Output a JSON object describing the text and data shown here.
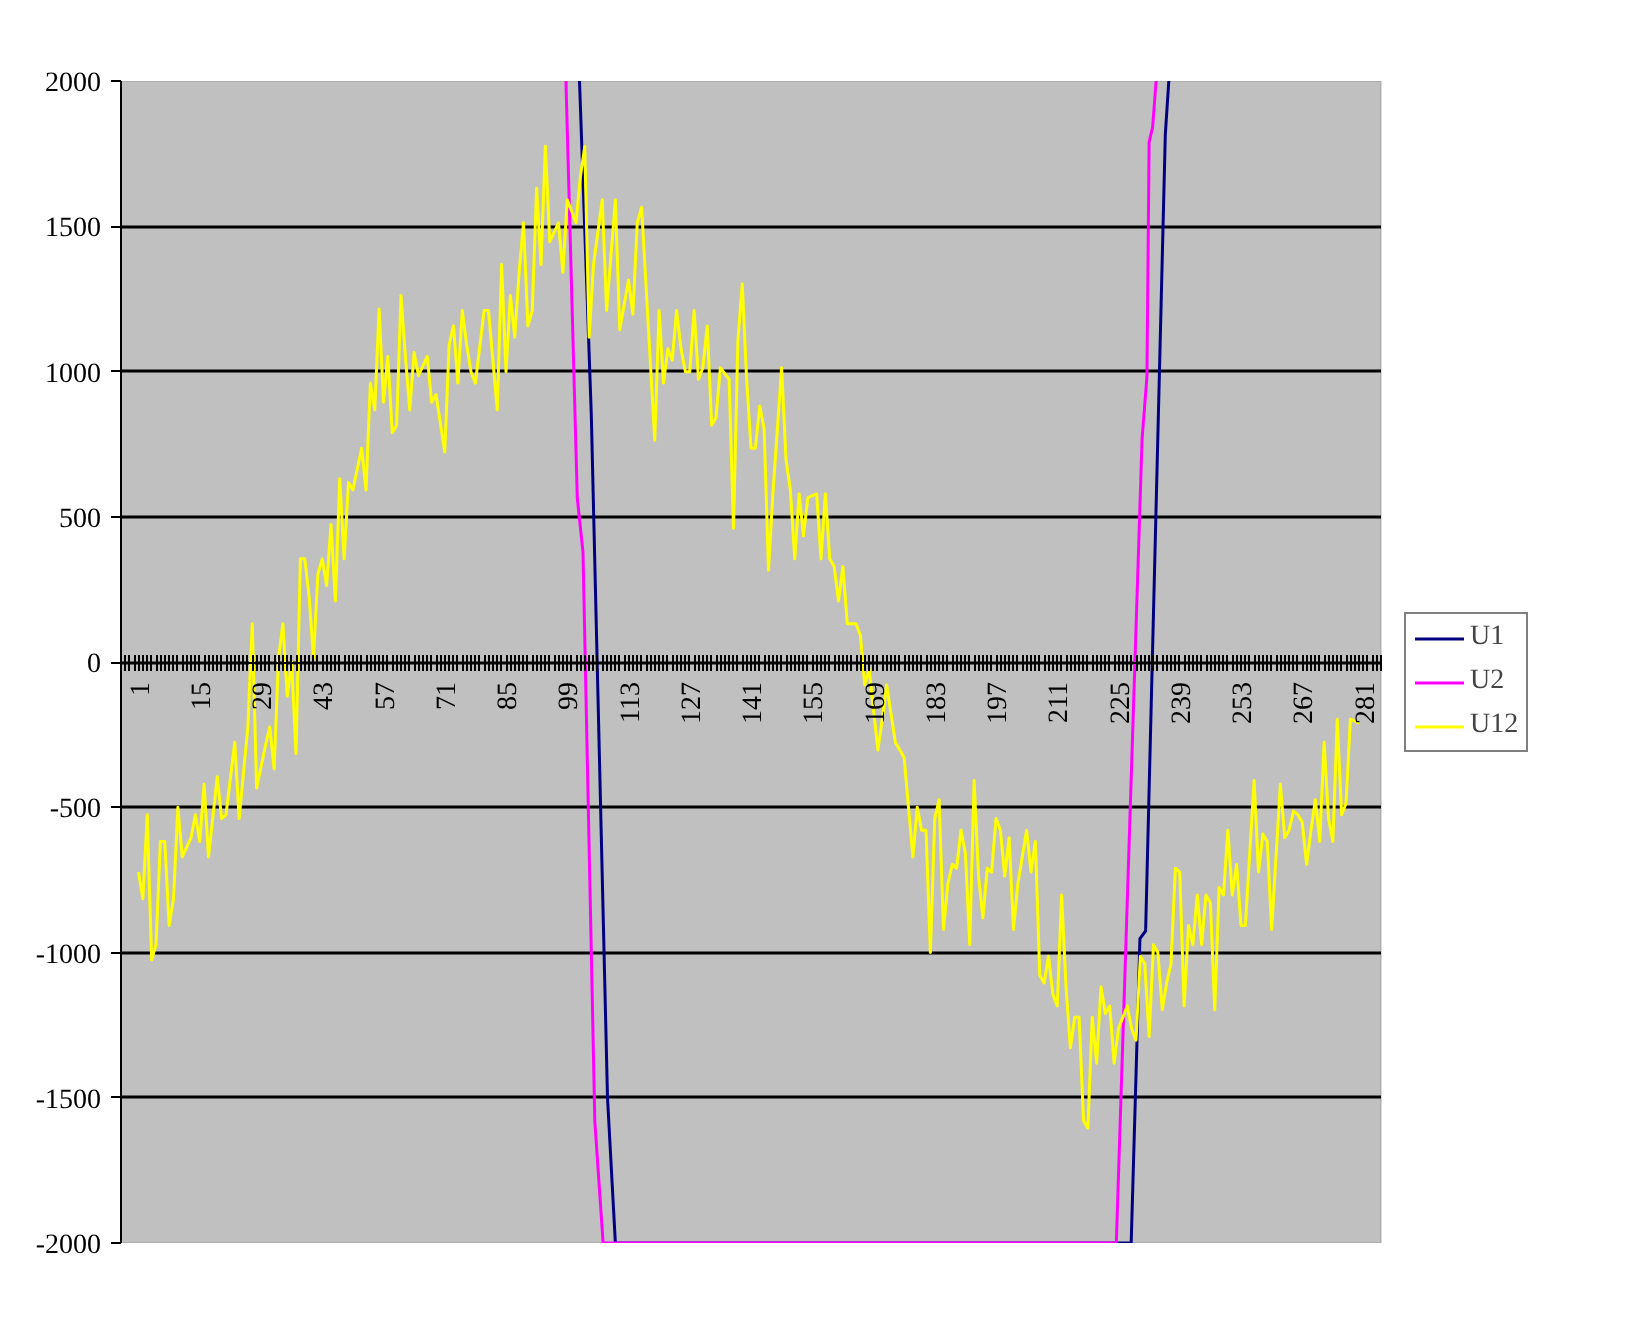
{
  "chart_data": {
    "type": "line",
    "xlim": [
      -3,
      285
    ],
    "xticks": [
      1,
      15,
      29,
      43,
      57,
      71,
      85,
      99,
      113,
      127,
      141,
      155,
      169,
      183,
      197,
      211,
      225,
      239,
      253,
      267,
      281
    ],
    "ylim": [
      -2000,
      2000
    ],
    "yticks": [
      -2000,
      -1500,
      -1000,
      -500,
      0,
      500,
      1000,
      1500,
      2000
    ],
    "grid": "y",
    "legend": "right",
    "marker": "none",
    "line_style": "solid",
    "series": [
      {
        "name": "U1",
        "color": "#000080",
        "x": [
          101.8,
          104.5,
          108.2,
          110,
          227.9,
          229.9,
          231.2,
          235.7,
          236.5
        ],
        "values": [
          2000,
          850,
          -1500,
          -2000,
          -2000,
          -952,
          -926,
          1816,
          2000
        ]
      },
      {
        "name": "U2",
        "color": "#ff00ff",
        "x": [
          98.7,
          101.3,
          102.6,
          105.3,
          107.2,
          224.5,
          230.4,
          231.5,
          232,
          232.8,
          233.6
        ],
        "values": [
          2000,
          563,
          378,
          -1580,
          -2000,
          -2000,
          770,
          982,
          1790,
          1841,
          2000
        ]
      },
      {
        "name": "U12",
        "color": "#ffff00",
        "x": [
          1,
          2,
          3,
          4,
          5,
          6,
          7,
          8,
          9,
          10,
          11,
          13,
          14,
          15,
          16,
          17,
          19,
          20,
          21,
          23,
          24,
          26,
          27,
          28,
          30,
          31,
          32,
          33,
          34,
          35,
          36,
          37,
          38,
          39,
          40,
          41,
          42,
          43,
          44,
          45,
          46,
          47,
          48,
          49,
          50,
          52,
          53,
          54,
          55,
          56,
          57,
          58,
          59,
          60,
          61,
          62,
          63,
          64,
          65,
          67,
          68,
          69,
          71,
          72,
          73,
          74,
          75,
          76,
          77,
          78,
          80,
          81,
          83,
          84,
          85,
          86,
          87,
          88,
          89,
          90,
          91,
          92,
          93,
          94,
          95,
          97,
          98,
          99,
          101,
          102,
          103,
          104,
          105,
          107,
          108,
          110,
          111,
          113,
          114,
          115,
          116,
          119,
          120,
          121,
          122,
          123,
          124,
          125,
          126,
          127,
          128,
          129,
          130,
          131,
          132,
          133,
          134,
          136,
          137,
          138,
          139,
          140,
          141,
          142,
          143,
          144,
          145,
          146,
          148,
          149,
          150,
          151,
          152,
          153,
          154,
          156,
          157,
          158,
          159,
          160,
          161,
          162,
          163,
          165,
          166,
          167,
          168,
          170,
          171,
          172,
          174,
          176,
          178,
          179,
          180,
          181,
          182,
          183,
          184,
          185,
          186,
          187,
          188,
          189,
          190,
          191,
          192,
          193,
          194,
          195,
          196,
          197,
          198,
          199,
          200,
          201,
          202,
          204,
          205,
          206,
          207,
          208,
          209,
          210,
          211,
          212,
          213,
          214,
          215,
          216,
          217,
          218,
          219,
          220,
          221,
          222,
          223,
          224,
          225,
          227,
          228,
          229,
          230,
          231,
          232,
          233,
          234,
          235,
          236,
          237,
          238,
          239,
          240,
          241,
          242,
          243,
          244,
          245,
          246,
          247,
          248,
          249,
          250,
          251,
          252,
          253,
          254,
          256,
          257,
          258,
          259,
          260,
          262,
          263,
          264,
          265,
          266,
          267,
          268,
          269,
          270,
          271,
          272,
          273,
          274,
          275,
          276,
          277,
          278,
          280
        ],
        "values": [
          -723,
          -815,
          -526,
          -1026,
          -973,
          -618,
          -618,
          -907,
          -815,
          -500,
          -671,
          -605,
          -526,
          -618,
          -421,
          -671,
          -395,
          -539,
          -526,
          -276,
          -539,
          -224,
          132,
          -434,
          -289,
          -224,
          -368,
          13,
          132,
          -118,
          0,
          -316,
          355,
          355,
          224,
          13,
          303,
          355,
          263,
          473,
          210,
          631,
          355,
          618,
          592,
          736,
          592,
          960,
          868,
          1215,
          894,
          1052,
          789,
          815,
          1262,
          1052,
          868,
          1065,
          986,
          1052,
          894,
          921,
          723,
          1092,
          1157,
          960,
          1210,
          1092,
          999,
          960,
          1210,
          1210,
          868,
          1368,
          999,
          1262,
          1118,
          1341,
          1512,
          1157,
          1210,
          1631,
          1368,
          1775,
          1447,
          1512,
          1341,
          1591,
          1512,
          1670,
          1775,
          1118,
          1368,
          1591,
          1210,
          1591,
          1144,
          1315,
          1197,
          1512,
          1565,
          763,
          1210,
          960,
          1078,
          1039,
          1210,
          1078,
          999,
          999,
          1210,
          973,
          1013,
          1157,
          815,
          842,
          1013,
          973,
          460,
          1105,
          1302,
          973,
          736,
          736,
          881,
          802,
          316,
          579,
          1013,
          697,
          592,
          355,
          579,
          434,
          566,
          579,
          355,
          579,
          355,
          329,
          210,
          329,
          132,
          132,
          92,
          -79,
          -26,
          -303,
          -197,
          -79,
          -276,
          -329,
          -671,
          -500,
          -579,
          -579,
          -1000,
          -539,
          -474,
          -921,
          -763,
          -697,
          -710,
          -579,
          -658,
          -973,
          -408,
          -737,
          -881,
          -710,
          -723,
          -539,
          -579,
          -737,
          -605,
          -921,
          -763,
          -579,
          -723,
          -618,
          -1078,
          -1105,
          -1013,
          -1144,
          -1184,
          -802,
          -1118,
          -1328,
          -1223,
          -1223,
          -1578,
          -1604,
          -1223,
          -1381,
          -1118,
          -1210,
          -1184,
          -1381,
          -1262,
          -1184,
          -1262,
          -1302,
          -1013,
          -1039,
          -1289,
          -973,
          -1000,
          -1197,
          -1105,
          -1039,
          -710,
          -723,
          -1184,
          -907,
          -973,
          -802,
          -973,
          -802,
          -828,
          -1197,
          -776,
          -802,
          -579,
          -802,
          -697,
          -907,
          -907,
          -408,
          -723,
          -592,
          -618,
          -921,
          -421,
          -605,
          -579,
          -513,
          -526,
          -552,
          -697,
          -579,
          -474,
          -618,
          -276,
          -539,
          -618,
          -197,
          -526,
          -487,
          -197,
          -210
        ]
      }
    ]
  }
}
